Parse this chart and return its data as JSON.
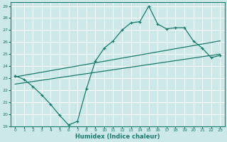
{
  "xlabel": "Humidex (Indice chaleur)",
  "background_color": "#cce8e8",
  "grid_color": "#ffffff",
  "line_color": "#1a7a6e",
  "xlim": [
    -0.5,
    23.5
  ],
  "ylim": [
    19,
    29.3
  ],
  "xticks": [
    0,
    1,
    2,
    3,
    4,
    5,
    6,
    7,
    8,
    9,
    10,
    11,
    12,
    13,
    14,
    15,
    16,
    17,
    18,
    19,
    20,
    21,
    22,
    23
  ],
  "yticks": [
    19,
    20,
    21,
    22,
    23,
    24,
    25,
    26,
    27,
    28,
    29
  ],
  "line1_x": [
    0,
    1,
    2,
    3,
    4,
    5,
    6,
    7,
    8,
    9,
    10,
    11,
    12,
    13,
    14,
    15,
    16,
    17,
    18,
    19,
    20,
    21,
    22,
    23
  ],
  "line1_y": [
    23.2,
    22.9,
    22.3,
    21.6,
    20.8,
    19.9,
    19.1,
    19.4,
    22.1,
    24.4,
    25.5,
    26.1,
    27.0,
    27.6,
    27.7,
    29.0,
    27.5,
    27.1,
    27.2,
    27.2,
    26.1,
    25.5,
    24.7,
    24.9
  ],
  "line2_x": [
    0,
    23
  ],
  "line2_y": [
    23.1,
    26.1
  ],
  "line3_x": [
    0,
    23
  ],
  "line3_y": [
    22.5,
    25.0
  ]
}
